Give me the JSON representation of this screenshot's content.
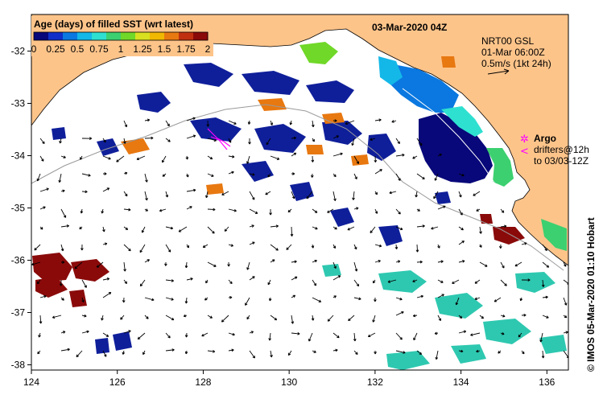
{
  "map": {
    "date_title": "03-Mar-2020 04Z",
    "colorbar": {
      "title": "Age (days) of filled SST (wrt latest)",
      "tick_labels": [
        "0",
        "0.25",
        "0.5",
        "0.75",
        "1",
        "1.25",
        "1.5",
        "1.75",
        "2"
      ],
      "colors": [
        "#08087a",
        "#0f2fc8",
        "#0a78e0",
        "#14b8e8",
        "#2ee0d0",
        "#3cd070",
        "#70d828",
        "#d8e020",
        "#f0b800",
        "#e87810",
        "#c03010",
        "#8a0a0a"
      ]
    },
    "velocity_info": {
      "line1": "NRT00 GSL",
      "line2": "01-Mar 06:00Z",
      "scale_label": "0.5m/s (1kt 24h)"
    },
    "argo_legend": {
      "title": "Argo",
      "line2": "drifters@12h",
      "line3": "to 03/03-12Z"
    },
    "x_ticks": [
      "124",
      "126",
      "128",
      "130",
      "132",
      "134",
      "136"
    ],
    "y_ticks": [
      "-32",
      "-33",
      "-34",
      "-35",
      "-36",
      "-37",
      "-38"
    ],
    "credit": "© IMOS 05-Mar-2020 01:10 Hobart",
    "colors": {
      "land": "#fdc48a",
      "ocean": "#ffffff",
      "argo": "#ff00ff"
    }
  }
}
